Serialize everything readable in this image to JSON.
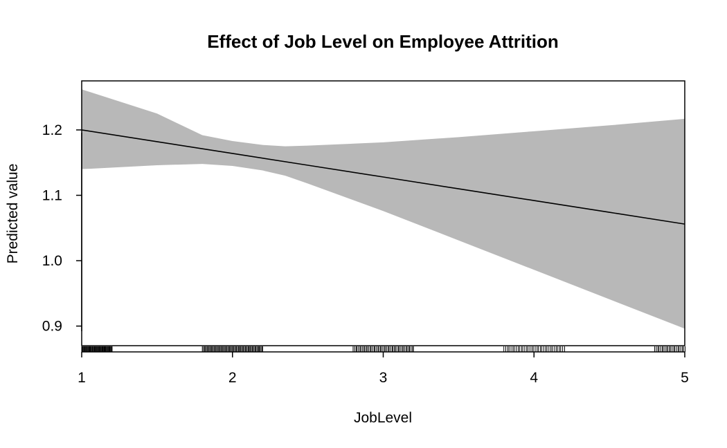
{
  "chart_data": {
    "type": "line",
    "title": "Effect of Job Level on Employee Attrition",
    "xlabel": "JobLevel",
    "ylabel": "Predicted value",
    "xlim": [
      1,
      5
    ],
    "ylim": [
      0.87,
      1.275
    ],
    "x_ticks": [
      "1",
      "2",
      "3",
      "4",
      "5"
    ],
    "y_ticks": [
      "0.9",
      "1.0",
      "1.1",
      "1.2"
    ],
    "series": [
      {
        "x": [
          1,
          1.5,
          2,
          2.5,
          3,
          3.5,
          4,
          4.5,
          5
        ],
        "y": [
          1.2,
          1.182,
          1.164,
          1.146,
          1.128,
          1.11,
          1.092,
          1.074,
          1.056
        ]
      }
    ],
    "confidence_band": {
      "x": [
        1,
        1.5,
        1.8,
        2,
        2.2,
        2.35,
        2.5,
        3,
        3.5,
        4,
        4.5,
        5
      ],
      "lower": [
        1.14,
        1.146,
        1.148,
        1.145,
        1.138,
        1.13,
        1.118,
        1.076,
        1.031,
        0.986,
        0.941,
        0.896
      ],
      "upper": [
        1.262,
        1.225,
        1.192,
        1.183,
        1.177,
        1.175,
        1.176,
        1.181,
        1.189,
        1.198,
        1.207,
        1.217
      ]
    },
    "band_color": "#b8b8b8",
    "line_color": "#000000",
    "grid": false,
    "rug": {
      "clusters": [
        {
          "center": 1,
          "half_width": 0.2,
          "count": 60
        },
        {
          "center": 2,
          "half_width": 0.2,
          "count": 70
        },
        {
          "center": 3,
          "half_width": 0.2,
          "count": 48
        },
        {
          "center": 4,
          "half_width": 0.2,
          "count": 36
        },
        {
          "center": 5,
          "half_width": 0.2,
          "count": 22
        }
      ]
    }
  }
}
